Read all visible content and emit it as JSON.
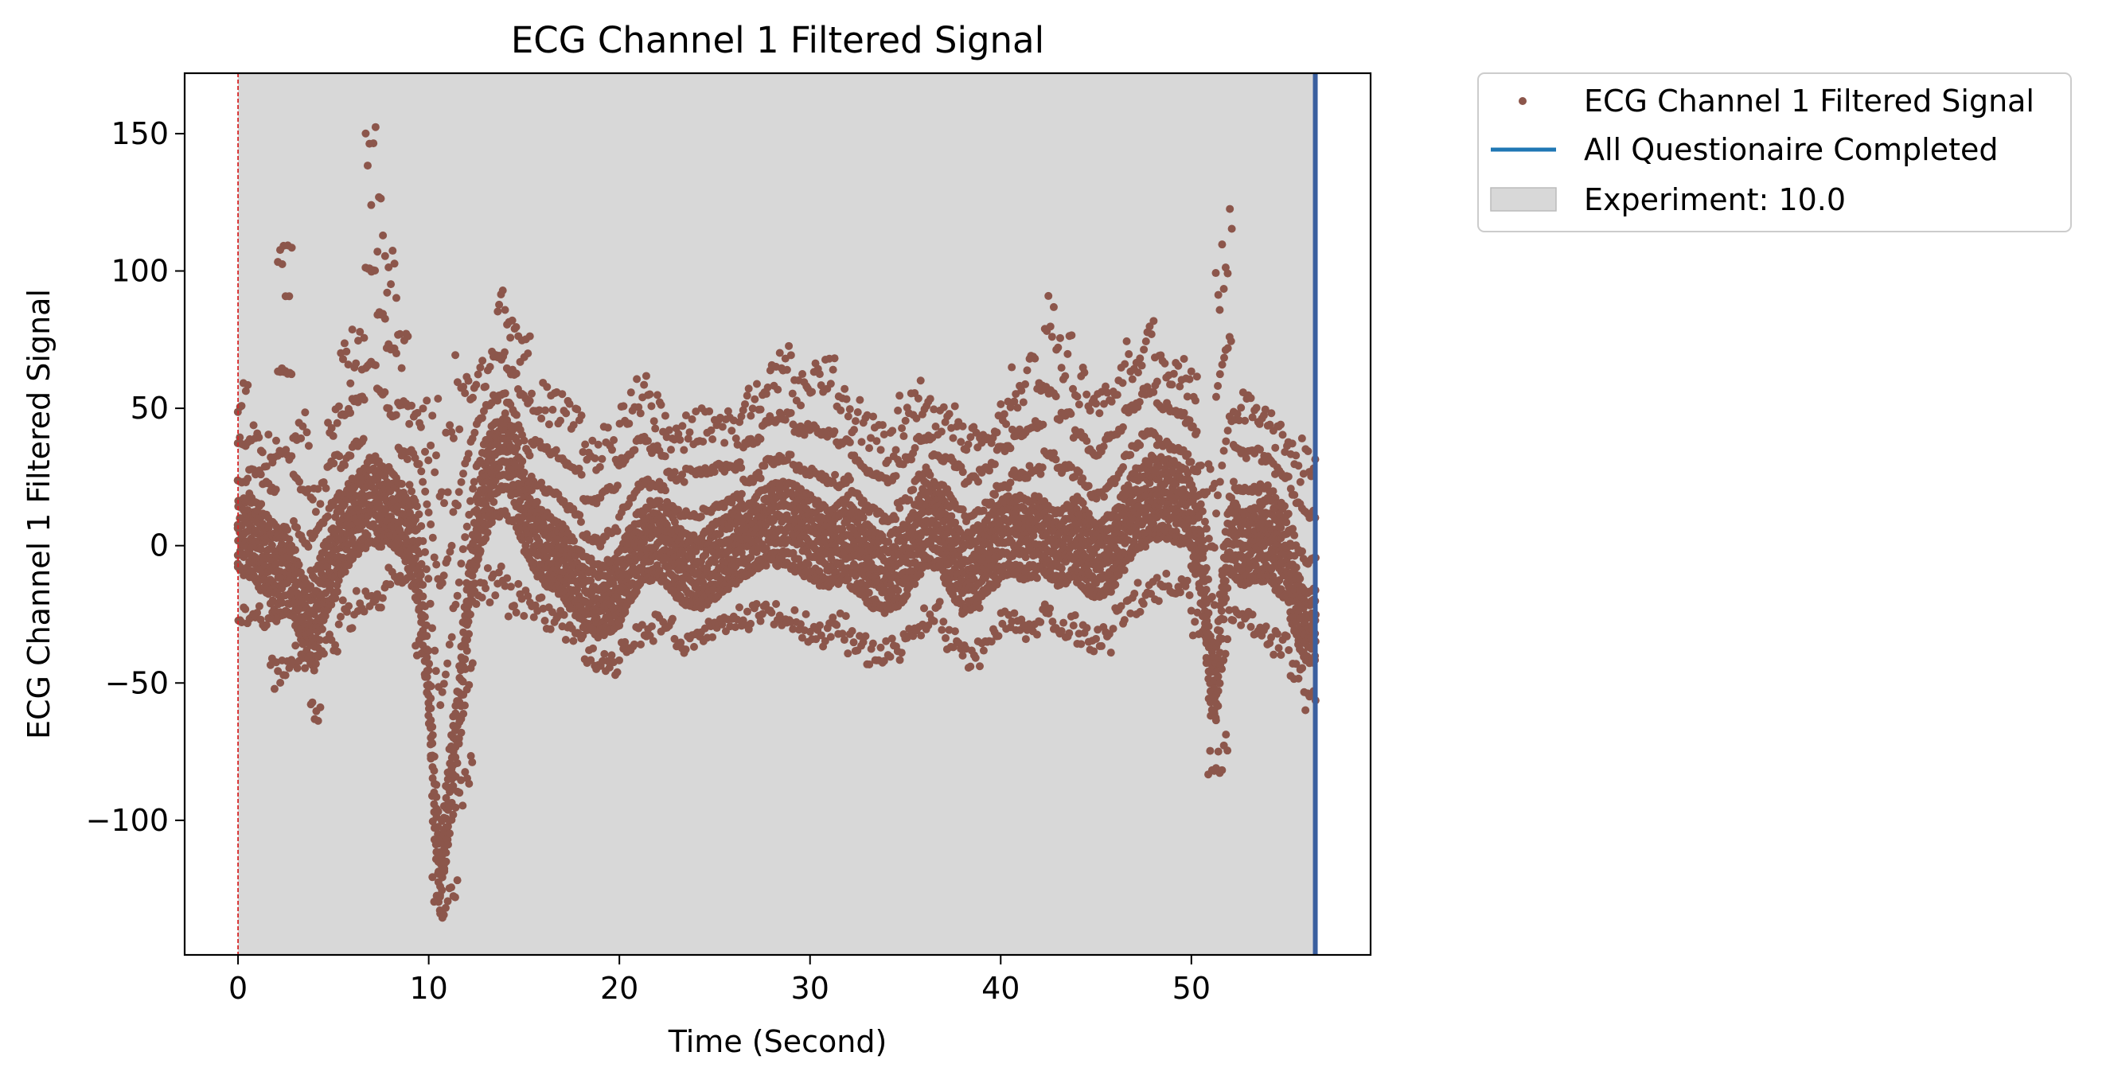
{
  "chart_data": {
    "type": "scatter",
    "title": "ECG Channel 1 Filtered Signal",
    "xlabel": "Time (Second)",
    "ylabel": "ECG Channel 1 Filtered Signal",
    "xlim": [
      -2.8,
      59.4
    ],
    "ylim": [
      -149,
      172
    ],
    "x_ticks": [
      0,
      10,
      20,
      30,
      40,
      50
    ],
    "y_ticks": [
      -100,
      -50,
      0,
      50,
      100,
      150
    ],
    "x_tick_labels": [
      "0",
      "10",
      "20",
      "30",
      "40",
      "50"
    ],
    "y_tick_labels": [
      "−100",
      "−50",
      "0",
      "50",
      "100",
      "150"
    ],
    "grid": false,
    "legend_position": "outside-right-top",
    "series": [
      {
        "name": "ECG Channel 1 Filtered Signal",
        "kind": "points",
        "color": "#8c564b",
        "sample_interval": 0.1,
        "x_start": 0.0,
        "baseline_anchors": [
          [
            0.0,
            5
          ],
          [
            0.5,
            4
          ],
          [
            1.0,
            0
          ],
          [
            1.5,
            -5
          ],
          [
            2.0,
            -10
          ],
          [
            2.5,
            -5
          ],
          [
            3.0,
            -15
          ],
          [
            3.5,
            -25
          ],
          [
            4.0,
            -30
          ],
          [
            4.5,
            -15
          ],
          [
            5.0,
            -5
          ],
          [
            5.5,
            5
          ],
          [
            6.0,
            12
          ],
          [
            6.5,
            15
          ],
          [
            7.0,
            20
          ],
          [
            7.5,
            18
          ],
          [
            8.0,
            15
          ],
          [
            8.5,
            10
          ],
          [
            9.0,
            5
          ],
          [
            9.5,
            -10
          ],
          [
            10.0,
            -50
          ],
          [
            10.3,
            -90
          ],
          [
            10.6,
            -120
          ],
          [
            10.9,
            -100
          ],
          [
            11.2,
            -80
          ],
          [
            11.5,
            -65
          ],
          [
            12.0,
            -25
          ],
          [
            12.5,
            5
          ],
          [
            13.0,
            20
          ],
          [
            13.5,
            32
          ],
          [
            14.0,
            35
          ],
          [
            14.5,
            30
          ],
          [
            15.0,
            15
          ],
          [
            15.5,
            5
          ],
          [
            16.0,
            0
          ],
          [
            17.0,
            -5
          ],
          [
            18.0,
            -15
          ],
          [
            19.0,
            -20
          ],
          [
            20.0,
            -15
          ],
          [
            21.0,
            0
          ],
          [
            22.0,
            5
          ],
          [
            23.0,
            -5
          ],
          [
            24.0,
            -10
          ],
          [
            25.0,
            -5
          ],
          [
            26.0,
            0
          ],
          [
            27.0,
            5
          ],
          [
            28.0,
            10
          ],
          [
            29.0,
            10
          ],
          [
            30.0,
            5
          ],
          [
            31.0,
            0
          ],
          [
            32.0,
            5
          ],
          [
            33.0,
            -5
          ],
          [
            34.0,
            -10
          ],
          [
            35.0,
            -5
          ],
          [
            36.0,
            10
          ],
          [
            37.0,
            5
          ],
          [
            38.0,
            -10
          ],
          [
            39.0,
            -5
          ],
          [
            40.0,
            5
          ],
          [
            41.0,
            5
          ],
          [
            42.0,
            5
          ],
          [
            43.0,
            0
          ],
          [
            44.0,
            5
          ],
          [
            45.0,
            -5
          ],
          [
            46.0,
            0
          ],
          [
            47.0,
            15
          ],
          [
            48.0,
            20
          ],
          [
            49.0,
            18
          ],
          [
            49.8,
            15
          ],
          [
            50.3,
            5
          ],
          [
            50.7,
            -20
          ],
          [
            51.0,
            -45
          ],
          [
            51.3,
            -50
          ],
          [
            51.6,
            -20
          ],
          [
            52.0,
            5
          ],
          [
            52.5,
            0
          ],
          [
            53.0,
            0
          ],
          [
            54.0,
            5
          ],
          [
            55.0,
            -5
          ],
          [
            55.7,
            -25
          ],
          [
            56.2,
            -30
          ],
          [
            56.5,
            -28
          ]
        ],
        "spike_events": [
          [
            0.2,
            60
          ],
          [
            0.8,
            45
          ],
          [
            1.6,
            40
          ],
          [
            2.5,
            110
          ],
          [
            3.3,
            50
          ],
          [
            4.2,
            25
          ],
          [
            5.0,
            55
          ],
          [
            5.6,
            75
          ],
          [
            6.3,
            80
          ],
          [
            7.0,
            155
          ],
          [
            7.5,
            128
          ],
          [
            8.0,
            110
          ],
          [
            8.6,
            80
          ],
          [
            9.3,
            55
          ],
          [
            13.2,
            70
          ],
          [
            13.8,
            92
          ],
          [
            14.3,
            85
          ],
          [
            15.0,
            80
          ],
          [
            15.7,
            60
          ],
          [
            16.5,
            58
          ],
          [
            17.5,
            55
          ],
          [
            18.5,
            40
          ],
          [
            19.5,
            45
          ],
          [
            20.5,
            60
          ],
          [
            21.2,
            63
          ],
          [
            22.0,
            55
          ],
          [
            23.0,
            45
          ],
          [
            24.0,
            50
          ],
          [
            25.0,
            50
          ],
          [
            26.0,
            48
          ],
          [
            27.0,
            60
          ],
          [
            28.0,
            70
          ],
          [
            28.7,
            72
          ],
          [
            29.5,
            65
          ],
          [
            30.3,
            68
          ],
          [
            31.0,
            68
          ],
          [
            31.8,
            60
          ],
          [
            32.5,
            52
          ],
          [
            33.3,
            48
          ],
          [
            34.2,
            45
          ],
          [
            35.0,
            55
          ],
          [
            36.0,
            60
          ],
          [
            36.8,
            50
          ],
          [
            37.6,
            52
          ],
          [
            38.5,
            45
          ],
          [
            39.3,
            48
          ],
          [
            40.2,
            55
          ],
          [
            41.0,
            65
          ],
          [
            42.0,
            70
          ],
          [
            42.6,
            92
          ],
          [
            43.3,
            78
          ],
          [
            44.2,
            65
          ],
          [
            45.0,
            60
          ],
          [
            46.0,
            68
          ],
          [
            47.0,
            75
          ],
          [
            47.8,
            82
          ],
          [
            48.5,
            72
          ],
          [
            49.3,
            70
          ],
          [
            50.0,
            65
          ],
          [
            50.8,
            30
          ],
          [
            51.8,
            123
          ],
          [
            52.5,
            58
          ],
          [
            53.3,
            55
          ],
          [
            54.0,
            50
          ],
          [
            54.8,
            45
          ],
          [
            55.5,
            40
          ],
          [
            56.3,
            38
          ]
        ],
        "dip_events": [
          [
            1.1,
            -30
          ],
          [
            2.2,
            -52
          ],
          [
            3.4,
            -45
          ],
          [
            4.1,
            -65
          ],
          [
            4.7,
            -40
          ],
          [
            5.8,
            -30
          ],
          [
            6.4,
            -25
          ],
          [
            8.8,
            -15
          ],
          [
            9.6,
            -40
          ],
          [
            10.6,
            -135
          ],
          [
            11.2,
            -130
          ],
          [
            11.9,
            -95
          ],
          [
            12.8,
            -20
          ],
          [
            15.2,
            -25
          ],
          [
            16.6,
            -30
          ],
          [
            17.6,
            -35
          ],
          [
            18.6,
            -45
          ],
          [
            19.6,
            -48
          ],
          [
            20.6,
            -40
          ],
          [
            21.5,
            -35
          ],
          [
            22.5,
            -35
          ],
          [
            23.5,
            -40
          ],
          [
            24.5,
            -35
          ],
          [
            25.5,
            -30
          ],
          [
            26.5,
            -30
          ],
          [
            27.5,
            -28
          ],
          [
            28.5,
            -30
          ],
          [
            29.5,
            -35
          ],
          [
            30.5,
            -38
          ],
          [
            31.5,
            -35
          ],
          [
            32.5,
            -40
          ],
          [
            33.5,
            -45
          ],
          [
            34.5,
            -42
          ],
          [
            35.5,
            -35
          ],
          [
            36.5,
            -30
          ],
          [
            37.5,
            -40
          ],
          [
            38.5,
            -45
          ],
          [
            39.5,
            -38
          ],
          [
            40.5,
            -32
          ],
          [
            41.5,
            -35
          ],
          [
            42.5,
            -30
          ],
          [
            43.5,
            -35
          ],
          [
            44.5,
            -40
          ],
          [
            45.5,
            -38
          ],
          [
            46.5,
            -30
          ],
          [
            47.5,
            -25
          ],
          [
            48.5,
            -20
          ],
          [
            49.5,
            -20
          ],
          [
            50.5,
            -35
          ],
          [
            51.2,
            -84
          ],
          [
            52.8,
            -30
          ],
          [
            53.8,
            -35
          ],
          [
            54.8,
            -40
          ],
          [
            55.6,
            -50
          ],
          [
            56.2,
            -60
          ]
        ]
      },
      {
        "name": "All Questionaire Completed",
        "kind": "vline",
        "x": 56.5,
        "color": "#1f77b4"
      }
    ],
    "reference_lines": [
      {
        "kind": "vline",
        "x": 0.0,
        "color": "#d62728",
        "style": "dashed"
      }
    ],
    "shaded_regions": [
      {
        "name": "Experiment: 10.0",
        "x0": 0.0,
        "x1": 56.5,
        "color": "#d8d8d8"
      }
    ],
    "legend": [
      {
        "label": "ECG Channel 1 Filtered Signal",
        "marker": "point",
        "color": "#8c564b"
      },
      {
        "label": "All Questionaire Completed",
        "marker": "line",
        "color": "#1f77b4"
      },
      {
        "label": "Experiment: 10.0",
        "marker": "patch",
        "color": "#d8d8d8"
      }
    ]
  }
}
